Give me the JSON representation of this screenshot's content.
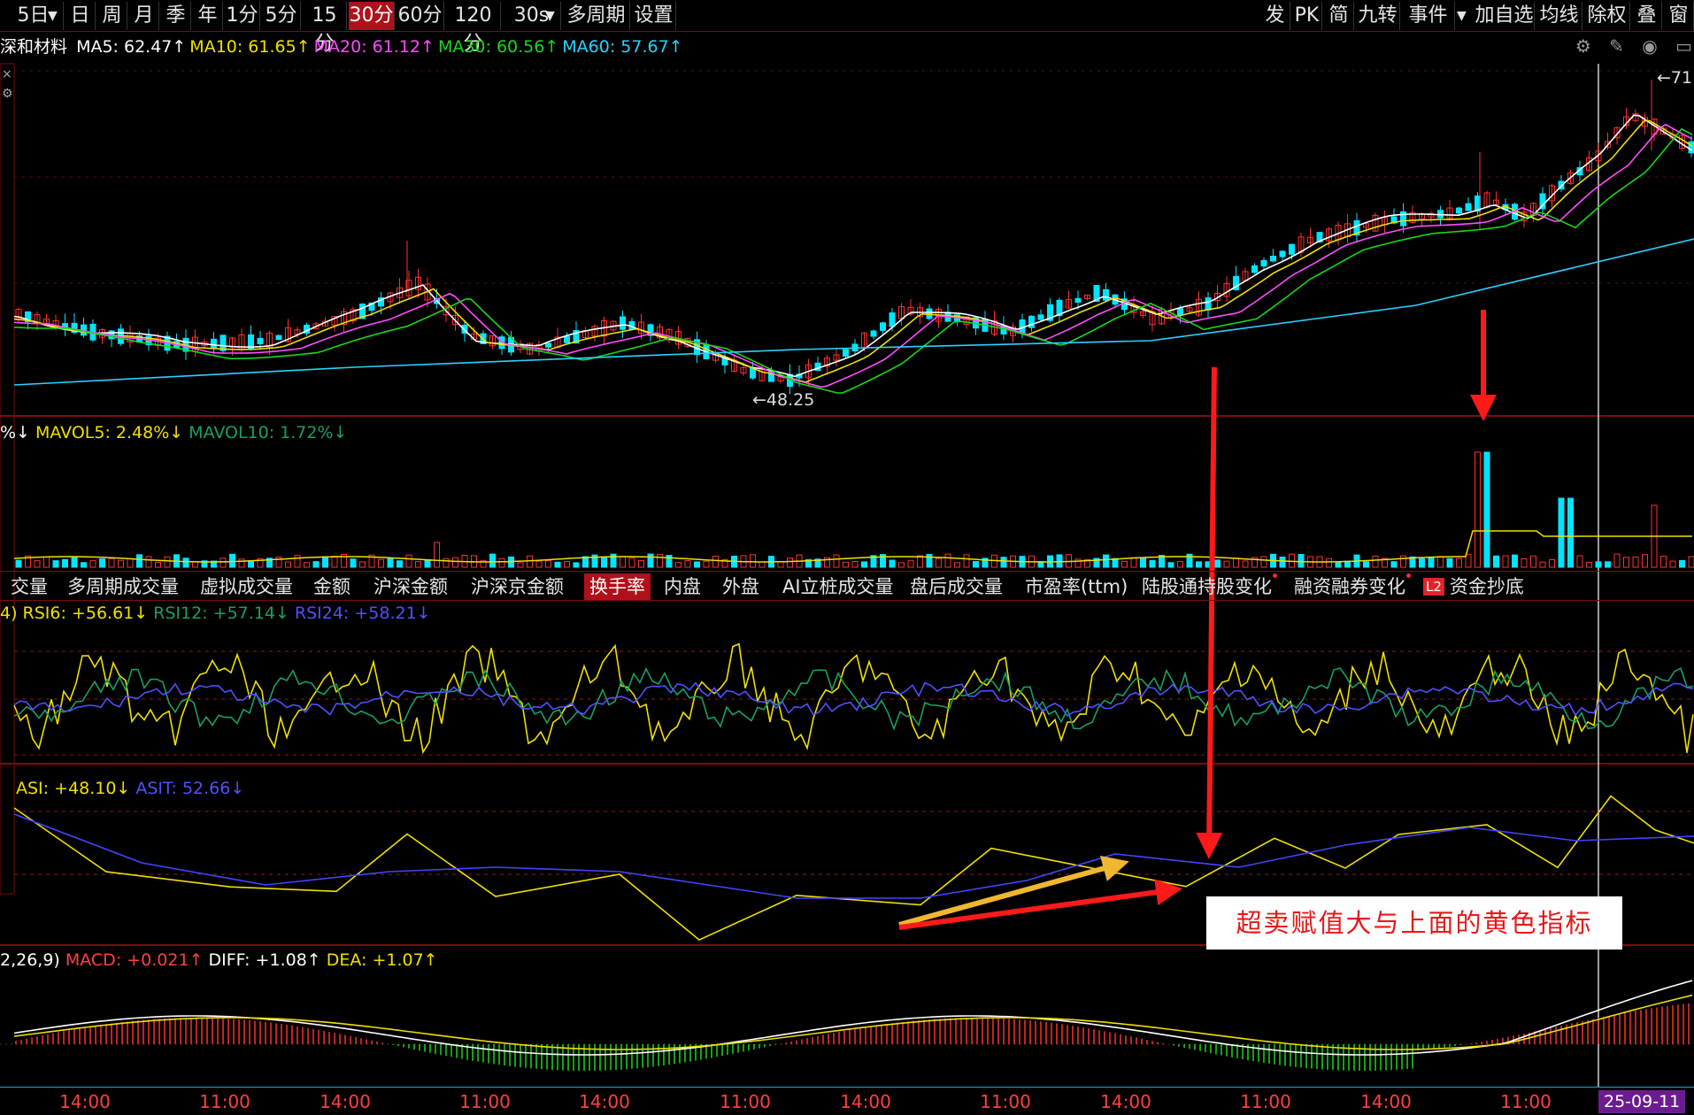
{
  "toolbar": {
    "periods": [
      "5日",
      "日",
      "周",
      "月",
      "季",
      "年",
      "1分",
      "5分",
      "15分",
      "30分",
      "60分",
      "120分",
      "30s",
      "多周期",
      "设置"
    ],
    "active_period": "30分",
    "right": [
      "发",
      "PK",
      "简",
      "九转",
      "事件",
      "加自选",
      "均线",
      "除权",
      "叠",
      "窗"
    ],
    "dropdown_icon": "chevron-down-icon"
  },
  "ma_bar": {
    "stock": "深和材料",
    "items": [
      {
        "label": "MA5: 62.47",
        "arrow": "↑",
        "color": "#ffffff"
      },
      {
        "label": "MA10: 61.65",
        "arrow": "↑",
        "color": "#f0e000"
      },
      {
        "label": "MA20: 61.12",
        "arrow": "↑",
        "color": "#ff4dff"
      },
      {
        "label": "MA30: 60.56",
        "arrow": "↑",
        "color": "#18d818"
      },
      {
        "label": "MA60: 57.67",
        "arrow": "↑",
        "color": "#2ad2ff"
      }
    ],
    "icons": [
      "gear-icon",
      "pen-icon",
      "eye-icon",
      "window-icon"
    ]
  },
  "price_marks": {
    "high": "71",
    "low": "48.25"
  },
  "volume_bar": {
    "items": [
      {
        "label": "%↓",
        "color": "#ffffff"
      },
      {
        "label": "MAVOL5: 2.48%↓",
        "color": "#f0e000"
      },
      {
        "label": "MAVOL10: 1.72%↓",
        "color": "#18a060"
      }
    ]
  },
  "tabs": [
    {
      "label": "交量",
      "active": false
    },
    {
      "label": "多周期成交量",
      "active": false
    },
    {
      "label": "虚拟成交量",
      "active": false
    },
    {
      "label": "金额",
      "active": false
    },
    {
      "label": "沪深金额",
      "active": false
    },
    {
      "label": "沪深京金额",
      "active": false
    },
    {
      "label": "换手率",
      "active": true
    },
    {
      "label": "内盘",
      "active": false
    },
    {
      "label": "外盘",
      "active": false
    },
    {
      "label": "AI立桩成交量",
      "active": false
    },
    {
      "label": "盘后成交量",
      "active": false
    },
    {
      "label": "市盈率(ttm)",
      "active": false
    },
    {
      "label": "陆股通持股变化",
      "active": false,
      "dot": true
    },
    {
      "label": "融资融券变化",
      "active": false,
      "dot": true
    },
    {
      "label": "资金抄底",
      "active": false,
      "badge": "L2"
    }
  ],
  "rsi": {
    "items": [
      {
        "label": "4) RSI6: +56.61↓",
        "color": "#f0e000"
      },
      {
        "label": "RSI12: +57.14↓",
        "color": "#18a060"
      },
      {
        "label": "RSI24: +58.21↓",
        "color": "#5050ff"
      }
    ]
  },
  "asi": {
    "items": [
      {
        "label": "ASI: +48.10↓",
        "color": "#f0e000"
      },
      {
        "label": "ASIT: 52.66↓",
        "color": "#5050ff"
      }
    ]
  },
  "macd": {
    "items": [
      {
        "label": "2,26,9)",
        "color": "#ffffff"
      },
      {
        "label": "MACD: +0.021↑",
        "color": "#ff4040"
      },
      {
        "label": "DIFF: +1.08↑",
        "color": "#ffffff"
      },
      {
        "label": "DEA: +1.07↑",
        "color": "#f0e000"
      }
    ]
  },
  "annotation": "超卖赋值大与上面的黄色指标",
  "time_axis": [
    "14:00",
    "11:00",
    "14:00",
    "11:00",
    "14:00",
    "11:00",
    "14:00",
    "11:00",
    "14:00",
    "11:00",
    "14:00",
    "11:00"
  ],
  "date_flag": "25-09-11"
}
